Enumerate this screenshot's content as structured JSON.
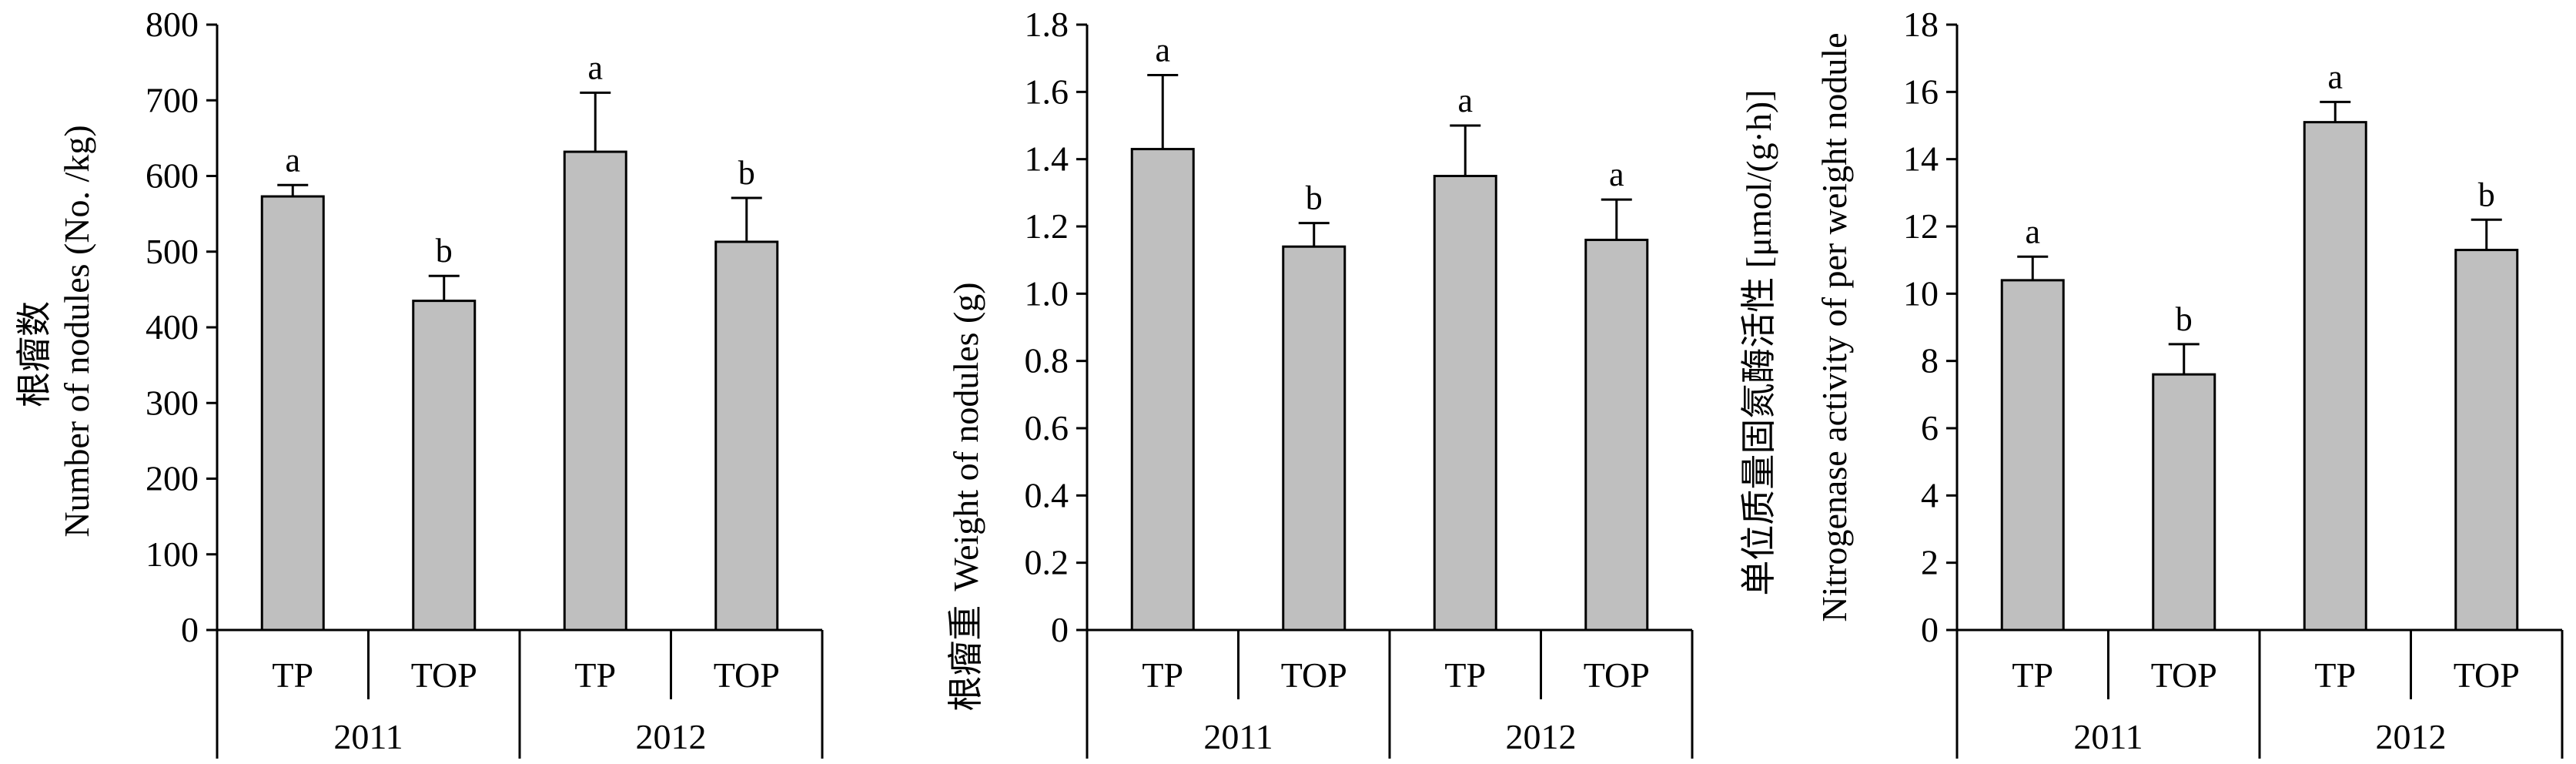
{
  "colors": {
    "bar_fill": "#bfbfbf",
    "bar_stroke": "#000000",
    "axis": "#000000"
  },
  "chart_data": [
    {
      "type": "bar",
      "ylabel_cn": "根瘤数",
      "ylabel_en": "Number of nodules (No. /kg)",
      "ylim": [
        0,
        800
      ],
      "yticks": [
        0,
        100,
        200,
        300,
        400,
        500,
        600,
        700,
        800
      ],
      "groups": [
        "2011",
        "2012"
      ],
      "categories": [
        "TP",
        "TOP",
        "TP",
        "TOP"
      ],
      "values": [
        573,
        435,
        632,
        513
      ],
      "errors": [
        15,
        33,
        78,
        58
      ],
      "significance": [
        "a",
        "b",
        "a",
        "b"
      ],
      "grid": false
    },
    {
      "type": "bar",
      "ylabel_cn": "根瘤重",
      "ylabel_en": "Weight of nodules (g)",
      "ylim": [
        0,
        1.8
      ],
      "yticks": [
        "0",
        "0.2",
        "0.4",
        "0.6",
        "0.8",
        "1.0",
        "1.2",
        "1.4",
        "1.6",
        "1.8"
      ],
      "groups": [
        "2011",
        "2012"
      ],
      "categories": [
        "TP",
        "TOP",
        "TP",
        "TOP"
      ],
      "values": [
        1.43,
        1.14,
        1.35,
        1.16
      ],
      "errors": [
        0.22,
        0.07,
        0.15,
        0.12
      ],
      "significance": [
        "a",
        "b",
        "a",
        "a"
      ],
      "grid": false
    },
    {
      "type": "bar",
      "ylabel_cn": "单位质量固氮酶活性 [μmol/(g·h)]",
      "ylabel_en": "Nitrogenase activity of per weight nodule",
      "ylim": [
        0,
        18
      ],
      "yticks": [
        0,
        2,
        4,
        6,
        8,
        10,
        12,
        14,
        16,
        18
      ],
      "groups": [
        "2011",
        "2012"
      ],
      "categories": [
        "TP",
        "TOP",
        "TP",
        "TOP"
      ],
      "values": [
        10.4,
        7.6,
        15.1,
        11.3
      ],
      "errors": [
        0.7,
        0.9,
        0.6,
        0.9
      ],
      "significance": [
        "a",
        "b",
        "a",
        "b"
      ],
      "grid": false
    }
  ]
}
